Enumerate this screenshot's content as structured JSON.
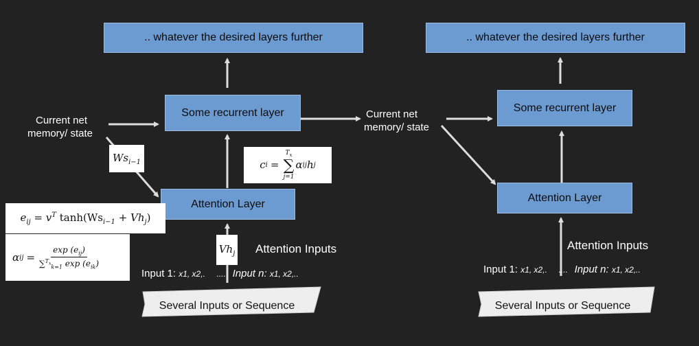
{
  "left": {
    "top_layers": ".. whatever the desired layers further",
    "recurrent": "Some recurrent layer",
    "attention": "Attention Layer",
    "state_label_1": "Current net",
    "state_label_2": "memory/ state",
    "attention_inputs": "Attention Inputs",
    "input1_prefix": "Input 1:",
    "input1_values": "x1, x2,.",
    "dots": "....",
    "inputn_prefix": "Input n:",
    "inputn_values": "x1, x2,..",
    "sequence": "Several Inputs or Sequence"
  },
  "right": {
    "top_layers": ".. whatever the desired layers further",
    "recurrent": "Some recurrent layer",
    "attention": "Attention Layer",
    "state_label_1": "Current net",
    "state_label_2": "memory/ state",
    "attention_inputs": "Attention Inputs",
    "input1_prefix": "Input 1:",
    "input1_values": "x1, x2,.",
    "dots": "....",
    "inputn_prefix": "Input n:",
    "inputn_values": "x1, x2,..",
    "sequence": "Several Inputs or Sequence"
  },
  "formulas": {
    "ws": "Ws",
    "ws_sub": "i−1",
    "vh": "Vh",
    "vh_sub": "j",
    "c_lhs": "c",
    "c_lhs_sub": "i",
    "c_sum_top": "T",
    "c_sum_top_sub": "x",
    "c_sum_bottom": "j=1",
    "c_term": "α",
    "c_term_sub": "ij",
    "c_term2": "h",
    "c_term2_sub": "j",
    "e_lhs": "e",
    "e_lhs_sub": "ij",
    "e_rhs_pre": "= v",
    "e_rhs_sup": "T",
    "e_rhs_mid": " tanh(Ws",
    "e_rhs_sub1": "i−1",
    "e_rhs_mid2": " + Vh",
    "e_rhs_sub2": "j",
    "e_rhs_end": ")",
    "a_lhs": "α",
    "a_lhs_sub": "ij",
    "a_num": "exp (e",
    "a_num_sub": "ij",
    "a_num_end": ")",
    "a_den_pre": "∑",
    "a_den_lim": "k=1",
    "a_den_lim_top": "T",
    "a_den_lim_top_sub": "x",
    "a_den_mid": " exp (e",
    "a_den_sub": "ik",
    "a_den_end": ")"
  },
  "colors": {
    "background": "#222222",
    "box_fill": "#6c9bd2",
    "arrow": "#dddddd",
    "card": "#ffffff",
    "sequence_shape": "#eeeeee"
  }
}
